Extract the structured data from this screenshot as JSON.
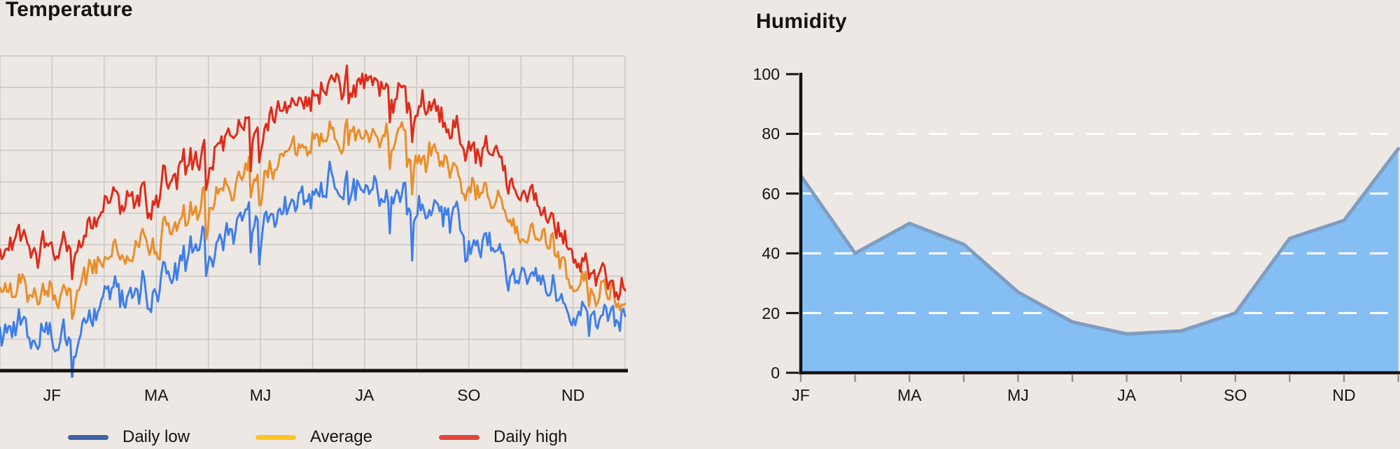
{
  "page": {
    "background": "#EDE8E3",
    "text_color": "#141414",
    "grid_color": "#C9C5C1",
    "axis_color": "#131313",
    "tick_color": "#96928E"
  },
  "chart_data": [
    {
      "id": "temperature",
      "type": "line",
      "title": "Temperature",
      "x_tick_labels": [
        "JF",
        "MA",
        "MJ",
        "JA",
        "SO",
        "ND"
      ],
      "ylim": [
        0,
        100
      ],
      "grid": true,
      "legend_position": "bottom",
      "points_per_series": 365,
      "daily_noise": {
        "shared_sigma": 3.8,
        "series_sigma": 2.6,
        "persistence": 0.62,
        "cold_snap_chance": 0.035
      },
      "series": [
        {
          "name": "Daily low",
          "line_color": "#3F7EE8",
          "legend_color": "#4263A8",
          "monthly_means": [
            13,
            14,
            23,
            35,
            46,
            55,
            60,
            59,
            50,
            38,
            25,
            19
          ]
        },
        {
          "name": "Average",
          "line_color": "#EA8E2A",
          "legend_color": "#FFC226",
          "monthly_means": [
            26,
            28,
            37,
            48,
            60,
            70,
            77,
            76,
            67,
            54,
            38,
            26
          ]
        },
        {
          "name": "Daily high",
          "line_color": "#DE2B1B",
          "legend_color": "#E2453A",
          "monthly_means": [
            40,
            43,
            52,
            64,
            76,
            86,
            92,
            91,
            81,
            66,
            49,
            33
          ]
        }
      ]
    },
    {
      "id": "humidity",
      "type": "area",
      "title": "Humidity",
      "x_tick_labels": [
        "JF",
        "MA",
        "MJ",
        "JA",
        "SO",
        "ND"
      ],
      "y_tick_labels": [
        100,
        80,
        60,
        40,
        20,
        0
      ],
      "ylim": [
        0,
        100
      ],
      "gridline_style": "dashed-white",
      "fill_color": "#85BEF3",
      "line_color": "#7E9DC2",
      "values": [
        66,
        40,
        50,
        43,
        27,
        17,
        13,
        14,
        20,
        45,
        51,
        75
      ]
    }
  ]
}
